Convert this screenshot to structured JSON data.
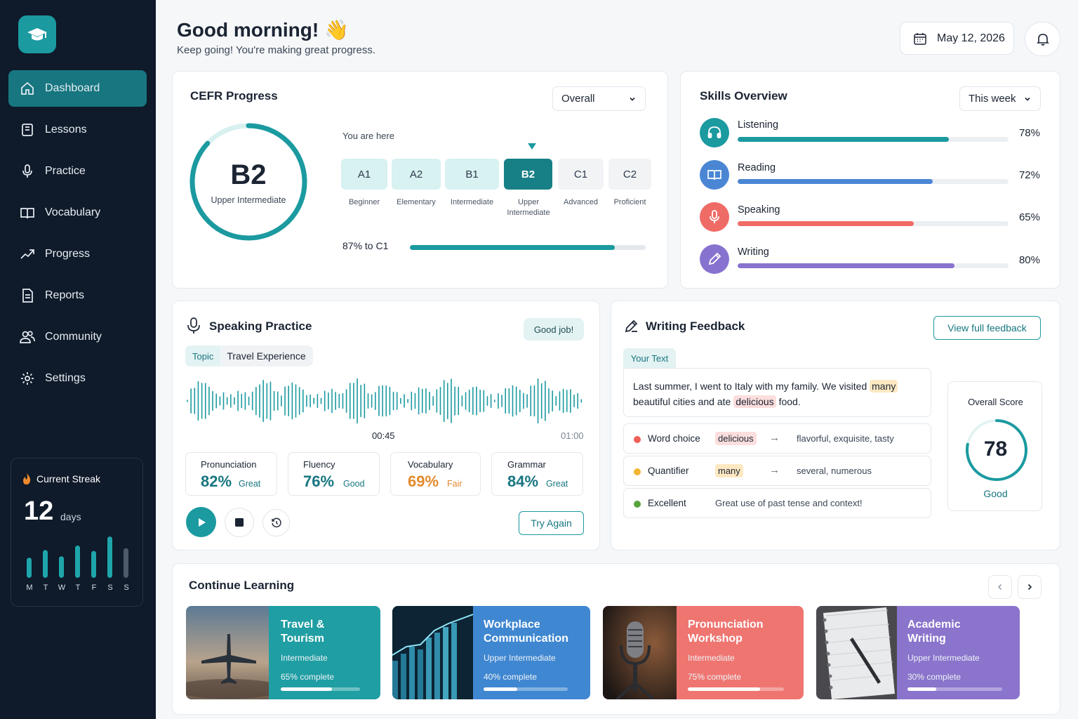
{
  "sidebar": {
    "items": [
      {
        "label": "Dashboard",
        "icon": "home-icon"
      },
      {
        "label": "Lessons",
        "icon": "book-icon"
      },
      {
        "label": "Practice",
        "icon": "microphone-icon"
      },
      {
        "label": "Vocabulary",
        "icon": "open-book-icon"
      },
      {
        "label": "Progress",
        "icon": "trending-icon"
      },
      {
        "label": "Reports",
        "icon": "document-icon"
      },
      {
        "label": "Community",
        "icon": "users-icon"
      },
      {
        "label": "Settings",
        "icon": "gear-icon"
      }
    ],
    "active_index": 0
  },
  "streak": {
    "title": "Current Streak",
    "count": "12",
    "unit": "days",
    "days": [
      "M",
      "T",
      "W",
      "T",
      "F",
      "S",
      "S"
    ],
    "levels": [
      0.45,
      0.62,
      0.48,
      0.72,
      0.6,
      0.92,
      0.66
    ]
  },
  "header": {
    "greeting": "Good morning! 👋",
    "subtitle": "Keep going! You're making great progress.",
    "date": "May 12, 2026"
  },
  "cefr": {
    "title": "CEFR Progress",
    "filter": "Overall",
    "current_level": "B2",
    "current_name": "Upper Intermediate",
    "ring_progress": 0.87,
    "you_are_here": "You are here",
    "levels": [
      {
        "code": "A1",
        "name": "Beginner"
      },
      {
        "code": "A2",
        "name": "Elementary"
      },
      {
        "code": "B1",
        "name": "Intermediate"
      },
      {
        "code": "B2",
        "name": "Upper Intermediate"
      },
      {
        "code": "C1",
        "name": "Advanced"
      },
      {
        "code": "C2",
        "name": "Proficient"
      }
    ],
    "progress_text": "87% to C1",
    "progress_value": 0.87
  },
  "skills": {
    "title": "Skills Overview",
    "filter": "This week",
    "items": [
      {
        "name": "Listening",
        "pct": "78%",
        "value": 0.78,
        "color": "#1b9aa0",
        "icon": "headphones-icon"
      },
      {
        "name": "Reading",
        "pct": "72%",
        "value": 0.72,
        "color": "#4a86d4",
        "icon": "book-icon"
      },
      {
        "name": "Speaking",
        "pct": "65%",
        "value": 0.65,
        "color": "#ef6b66",
        "icon": "microphone-icon"
      },
      {
        "name": "Writing",
        "pct": "80%",
        "value": 0.8,
        "color": "#8872cf",
        "icon": "pencil-icon"
      }
    ]
  },
  "speaking": {
    "title": "Speaking Practice",
    "badge": "Good job!",
    "topic_label": "Topic",
    "topic": "Travel Experience",
    "time_current": "00:45",
    "time_total": "01:00",
    "metrics": [
      {
        "label": "Pronunciation",
        "value": "82%",
        "quality": "Great",
        "color": "#177680"
      },
      {
        "label": "Fluency",
        "value": "76%",
        "quality": "Good",
        "color": "#177680"
      },
      {
        "label": "Vocabulary",
        "value": "69%",
        "quality": "Fair",
        "color": "#e38a2e"
      },
      {
        "label": "Grammar",
        "value": "84%",
        "quality": "Great",
        "color": "#177680"
      }
    ],
    "try_again": "Try Again"
  },
  "writing": {
    "title": "Writing Feedback",
    "view_button": "View full feedback",
    "your_text_label": "Your Text",
    "text_part1": "Last summer, I went to Italy with my family. We visited ",
    "text_hl1": "many",
    "text_part2": "beautiful cities and ate ",
    "text_hl2": "delicious",
    "text_part3": " food.",
    "feedback": [
      {
        "type": "Word choice",
        "word": "delicious",
        "arrow": "→",
        "suggestion": "flavorful, exquisite, tasty",
        "color": "#ef5f5a"
      },
      {
        "type": "Quantifier",
        "word": "many",
        "arrow": "→",
        "suggestion": "several, numerous",
        "color": "#f2b632"
      },
      {
        "type": "Excellent",
        "comment": "Great use of past tense and context!",
        "color": "#58a33c"
      }
    ],
    "score_label": "Overall Score",
    "score": "78",
    "score_value": 0.78,
    "score_quality": "Good"
  },
  "continue": {
    "title": "Continue Learning",
    "courses": [
      {
        "title": "Travel & Tourism",
        "level": "Intermediate",
        "progress_text": "65% complete",
        "progress": 0.65,
        "color": "#1f9ea3"
      },
      {
        "title": "Workplace Communication",
        "level": "Upper Intermediate",
        "progress_text": "40% complete",
        "progress": 0.4,
        "color": "#3f87d1"
      },
      {
        "title": "Pronunciation Workshop",
        "level": "Intermediate",
        "progress_text": "75% complete",
        "progress": 0.75,
        "color": "#ef7571"
      },
      {
        "title": "Academic Writing",
        "level": "Upper Intermediate",
        "progress_text": "30% complete",
        "progress": 0.3,
        "color": "#8a74cc"
      }
    ]
  }
}
